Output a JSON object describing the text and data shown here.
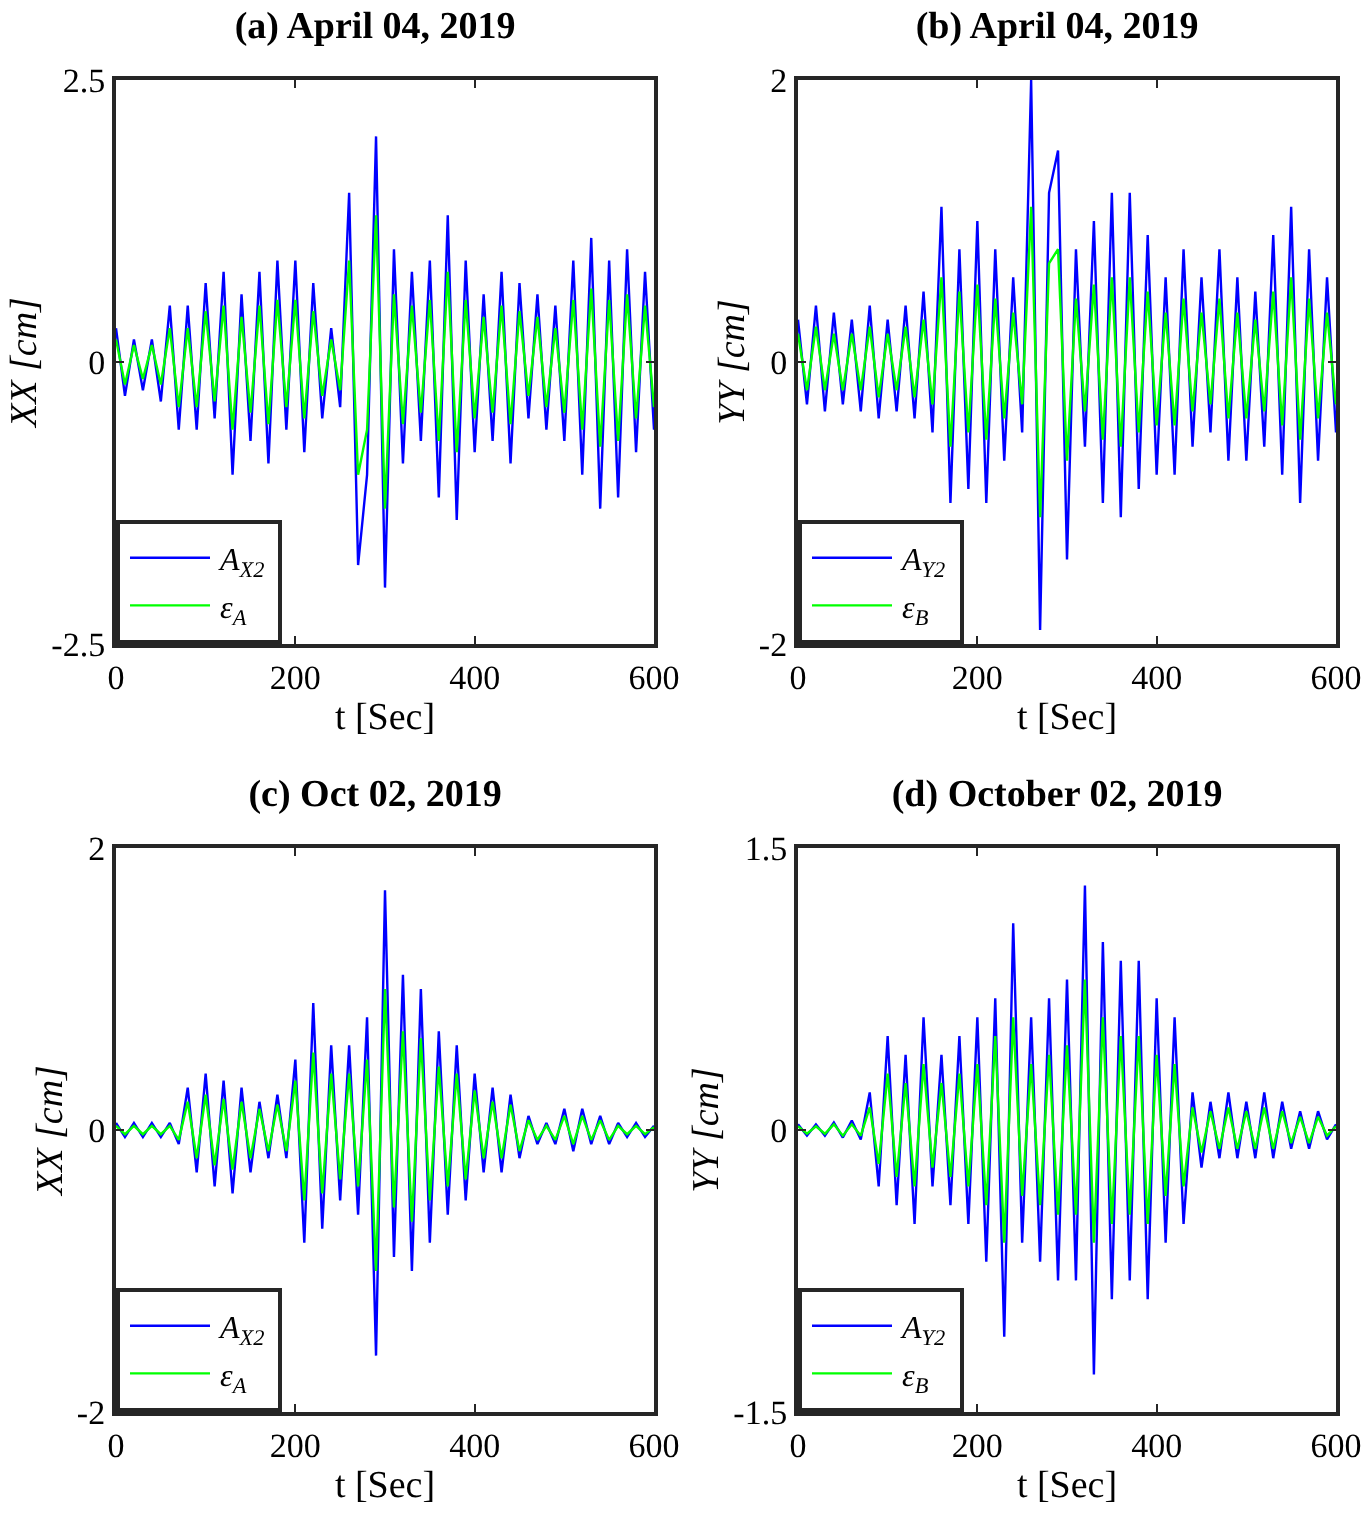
{
  "chart_data": [
    {
      "type": "line",
      "title": "(a) April 04, 2019",
      "xlabel": "t [Sec]",
      "ylabel": "XX [cm]",
      "xlim": [
        0,
        600
      ],
      "xticks": [
        0,
        200,
        400,
        600
      ],
      "ylim": [
        -2.5,
        2.5
      ],
      "yticks": [
        -2.5,
        0,
        2.5
      ],
      "grid": false,
      "legend": "bottom left",
      "x": [
        0,
        10,
        20,
        30,
        40,
        50,
        60,
        70,
        80,
        90,
        100,
        110,
        120,
        130,
        140,
        150,
        160,
        170,
        180,
        190,
        200,
        210,
        220,
        230,
        240,
        250,
        260,
        270,
        280,
        290,
        300,
        310,
        320,
        330,
        340,
        350,
        360,
        370,
        380,
        390,
        400,
        410,
        420,
        430,
        440,
        450,
        460,
        470,
        480,
        490,
        500,
        510,
        520,
        530,
        540,
        550,
        560,
        570,
        580,
        590,
        600
      ],
      "series": [
        {
          "name": "A$_{X2}$",
          "color": "#0000ff",
          "values": [
            0.3,
            -0.3,
            0.2,
            -0.25,
            0.2,
            -0.35,
            0.5,
            -0.6,
            0.5,
            -0.6,
            0.7,
            -0.5,
            0.8,
            -1.0,
            0.6,
            -0.7,
            0.8,
            -0.9,
            0.9,
            -0.6,
            0.9,
            -0.8,
            0.7,
            -0.5,
            0.3,
            -0.4,
            1.5,
            -1.8,
            -1.0,
            2.0,
            -2.0,
            1.0,
            -0.9,
            0.8,
            -0.7,
            0.9,
            -1.2,
            1.3,
            -1.4,
            0.9,
            -0.8,
            0.6,
            -0.7,
            0.8,
            -0.9,
            0.7,
            -0.5,
            0.6,
            -0.6,
            0.5,
            -0.7,
            0.9,
            -1.0,
            1.1,
            -1.3,
            0.9,
            -1.2,
            1.0,
            -0.8,
            0.8,
            -0.6
          ]
        },
        {
          "name": "ε$_{A}$",
          "color": "#00ff00",
          "values": [
            0.2,
            -0.2,
            0.15,
            -0.15,
            0.15,
            -0.2,
            0.3,
            -0.4,
            0.3,
            -0.4,
            0.45,
            -0.35,
            0.5,
            -0.6,
            0.4,
            -0.45,
            0.5,
            -0.55,
            0.55,
            -0.4,
            0.55,
            -0.5,
            0.45,
            -0.3,
            0.2,
            -0.25,
            0.9,
            -1.0,
            -0.6,
            1.3,
            -1.3,
            0.6,
            -0.55,
            0.5,
            -0.45,
            0.55,
            -0.7,
            0.8,
            -0.8,
            0.55,
            -0.5,
            0.4,
            -0.45,
            0.5,
            -0.55,
            0.45,
            -0.3,
            0.4,
            -0.4,
            0.3,
            -0.45,
            0.55,
            -0.6,
            0.65,
            -0.75,
            0.55,
            -0.7,
            0.6,
            -0.5,
            0.5,
            -0.4
          ]
        }
      ]
    },
    {
      "type": "line",
      "title": "(b) April 04, 2019",
      "xlabel": "t [Sec]",
      "ylabel": "YY [cm]",
      "xlim": [
        0,
        600
      ],
      "xticks": [
        0,
        200,
        400,
        600
      ],
      "ylim": [
        -2,
        2
      ],
      "yticks": [
        -2,
        0,
        2
      ],
      "grid": false,
      "legend": "bottom left",
      "x": [
        0,
        10,
        20,
        30,
        40,
        50,
        60,
        70,
        80,
        90,
        100,
        110,
        120,
        130,
        140,
        150,
        160,
        170,
        180,
        190,
        200,
        210,
        220,
        230,
        240,
        250,
        260,
        270,
        280,
        290,
        300,
        310,
        320,
        330,
        340,
        350,
        360,
        370,
        380,
        390,
        400,
        410,
        420,
        430,
        440,
        450,
        460,
        470,
        480,
        490,
        500,
        510,
        520,
        530,
        540,
        550,
        560,
        570,
        580,
        590,
        600
      ],
      "series": [
        {
          "name": "A$_{Y2}$",
          "color": "#0000ff",
          "values": [
            0.3,
            -0.3,
            0.4,
            -0.35,
            0.35,
            -0.3,
            0.3,
            -0.35,
            0.4,
            -0.4,
            0.3,
            -0.35,
            0.4,
            -0.4,
            0.5,
            -0.5,
            1.1,
            -1.0,
            0.8,
            -0.9,
            1.0,
            -1.0,
            0.8,
            -0.7,
            0.6,
            -0.5,
            2.0,
            -1.9,
            1.2,
            1.5,
            -1.4,
            0.8,
            -0.6,
            1.0,
            -1.0,
            1.2,
            -1.1,
            1.2,
            -0.9,
            0.9,
            -0.8,
            0.6,
            -0.8,
            0.8,
            -0.6,
            0.6,
            -0.5,
            0.8,
            -0.7,
            0.6,
            -0.7,
            0.5,
            -0.6,
            0.9,
            -0.8,
            1.1,
            -1.0,
            0.8,
            -0.7,
            0.6,
            -0.5
          ]
        },
        {
          "name": "ε$_{B}$",
          "color": "#00ff00",
          "values": [
            0.2,
            -0.2,
            0.25,
            -0.2,
            0.2,
            -0.2,
            0.2,
            -0.2,
            0.25,
            -0.25,
            0.2,
            -0.2,
            0.25,
            -0.25,
            0.3,
            -0.3,
            0.6,
            -0.6,
            0.5,
            -0.5,
            0.55,
            -0.55,
            0.45,
            -0.4,
            0.35,
            -0.3,
            1.1,
            -1.1,
            0.7,
            0.8,
            -0.7,
            0.45,
            -0.35,
            0.55,
            -0.55,
            0.6,
            -0.6,
            0.6,
            -0.5,
            0.5,
            -0.45,
            0.35,
            -0.45,
            0.45,
            -0.35,
            0.35,
            -0.3,
            0.45,
            -0.4,
            0.35,
            -0.4,
            0.3,
            -0.35,
            0.5,
            -0.45,
            0.6,
            -0.55,
            0.45,
            -0.4,
            0.35,
            -0.3
          ]
        }
      ]
    },
    {
      "type": "line",
      "title": "(c) Oct 02, 2019",
      "xlabel": "t [Sec]",
      "ylabel": "XX [cm]",
      "xlim": [
        0,
        600
      ],
      "xticks": [
        0,
        200,
        400,
        600
      ],
      "ylim": [
        -2,
        2
      ],
      "yticks": [
        -2,
        0,
        2
      ],
      "grid": false,
      "legend": "bottom left",
      "x": [
        0,
        10,
        20,
        30,
        40,
        50,
        60,
        70,
        80,
        90,
        100,
        110,
        120,
        130,
        140,
        150,
        160,
        170,
        180,
        190,
        200,
        210,
        220,
        230,
        240,
        250,
        260,
        270,
        280,
        290,
        300,
        310,
        320,
        330,
        340,
        350,
        360,
        370,
        380,
        390,
        400,
        410,
        420,
        430,
        440,
        450,
        460,
        470,
        480,
        490,
        500,
        510,
        520,
        530,
        540,
        550,
        560,
        570,
        580,
        590,
        600
      ],
      "series": [
        {
          "name": "A$_{X2}$",
          "color": "#0000ff",
          "values": [
            0.05,
            -0.05,
            0.05,
            -0.05,
            0.05,
            -0.05,
            0.05,
            -0.1,
            0.3,
            -0.3,
            0.4,
            -0.4,
            0.35,
            -0.45,
            0.3,
            -0.3,
            0.2,
            -0.2,
            0.25,
            -0.2,
            0.5,
            -0.8,
            0.9,
            -0.7,
            0.6,
            -0.5,
            0.6,
            -0.6,
            0.8,
            -1.6,
            1.7,
            -0.9,
            1.1,
            -1.0,
            1.0,
            -0.8,
            0.7,
            -0.6,
            0.6,
            -0.5,
            0.4,
            -0.3,
            0.3,
            -0.3,
            0.25,
            -0.2,
            0.1,
            -0.1,
            0.05,
            -0.1,
            0.15,
            -0.15,
            0.15,
            -0.1,
            0.1,
            -0.1,
            0.05,
            -0.05,
            0.05,
            -0.05,
            0.03
          ]
        },
        {
          "name": "ε$_{A}$",
          "color": "#00ff00",
          "values": [
            0.03,
            -0.03,
            0.03,
            -0.03,
            0.03,
            -0.03,
            0.03,
            -0.07,
            0.2,
            -0.2,
            0.25,
            -0.25,
            0.22,
            -0.28,
            0.2,
            -0.2,
            0.15,
            -0.15,
            0.18,
            -0.15,
            0.35,
            -0.5,
            0.55,
            -0.45,
            0.4,
            -0.35,
            0.4,
            -0.4,
            0.5,
            -1.0,
            1.0,
            -0.55,
            0.7,
            -0.65,
            0.65,
            -0.5,
            0.45,
            -0.4,
            0.4,
            -0.35,
            0.28,
            -0.2,
            0.2,
            -0.2,
            0.18,
            -0.15,
            0.07,
            -0.07,
            0.03,
            -0.07,
            0.1,
            -0.1,
            0.1,
            -0.07,
            0.07,
            -0.07,
            0.03,
            -0.03,
            0.03,
            -0.03,
            0.02
          ]
        }
      ]
    },
    {
      "type": "line",
      "title": "(d) October 02, 2019",
      "xlabel": "t [Sec]",
      "ylabel": "YY [cm]",
      "xlim": [
        0,
        600
      ],
      "xticks": [
        0,
        200,
        400,
        600
      ],
      "ylim": [
        -1.5,
        1.5
      ],
      "yticks": [
        -1.5,
        0,
        1.5
      ],
      "grid": false,
      "legend": "bottom left",
      "x": [
        0,
        10,
        20,
        30,
        40,
        50,
        60,
        70,
        80,
        90,
        100,
        110,
        120,
        130,
        140,
        150,
        160,
        170,
        180,
        190,
        200,
        210,
        220,
        230,
        240,
        250,
        260,
        270,
        280,
        290,
        300,
        310,
        320,
        330,
        340,
        350,
        360,
        370,
        380,
        390,
        400,
        410,
        420,
        430,
        440,
        450,
        460,
        470,
        480,
        490,
        500,
        510,
        520,
        530,
        540,
        550,
        560,
        570,
        580,
        590,
        600
      ],
      "series": [
        {
          "name": "A$_{Y2}$",
          "color": "#0000ff",
          "values": [
            0.03,
            -0.03,
            0.03,
            -0.03,
            0.04,
            -0.04,
            0.05,
            -0.05,
            0.2,
            -0.3,
            0.5,
            -0.4,
            0.4,
            -0.5,
            0.6,
            -0.3,
            0.4,
            -0.4,
            0.5,
            -0.5,
            0.6,
            -0.7,
            0.7,
            -1.1,
            1.1,
            -0.6,
            0.6,
            -0.7,
            0.7,
            -0.8,
            0.8,
            -0.8,
            1.3,
            -1.3,
            1.0,
            -0.9,
            0.9,
            -0.8,
            0.9,
            -0.9,
            0.7,
            -0.6,
            0.6,
            -0.5,
            0.2,
            -0.2,
            0.15,
            -0.15,
            0.2,
            -0.15,
            0.15,
            -0.15,
            0.2,
            -0.15,
            0.15,
            -0.1,
            0.1,
            -0.1,
            0.1,
            -0.05,
            0.03
          ]
        },
        {
          "name": "ε$_{B}$",
          "color": "#00ff00",
          "values": [
            0.02,
            -0.02,
            0.02,
            -0.02,
            0.03,
            -0.03,
            0.03,
            -0.03,
            0.12,
            -0.18,
            0.3,
            -0.25,
            0.25,
            -0.3,
            0.35,
            -0.2,
            0.25,
            -0.25,
            0.3,
            -0.3,
            0.35,
            -0.4,
            0.5,
            -0.6,
            0.6,
            -0.35,
            0.35,
            -0.4,
            0.4,
            -0.45,
            0.45,
            -0.45,
            0.8,
            -0.6,
            0.6,
            -0.5,
            0.5,
            -0.45,
            0.5,
            -0.5,
            0.4,
            -0.35,
            0.35,
            -0.3,
            0.12,
            -0.12,
            0.1,
            -0.1,
            0.12,
            -0.1,
            0.1,
            -0.1,
            0.12,
            -0.1,
            0.1,
            -0.07,
            0.07,
            -0.07,
            0.07,
            -0.03,
            0.02
          ]
        }
      ]
    }
  ]
}
